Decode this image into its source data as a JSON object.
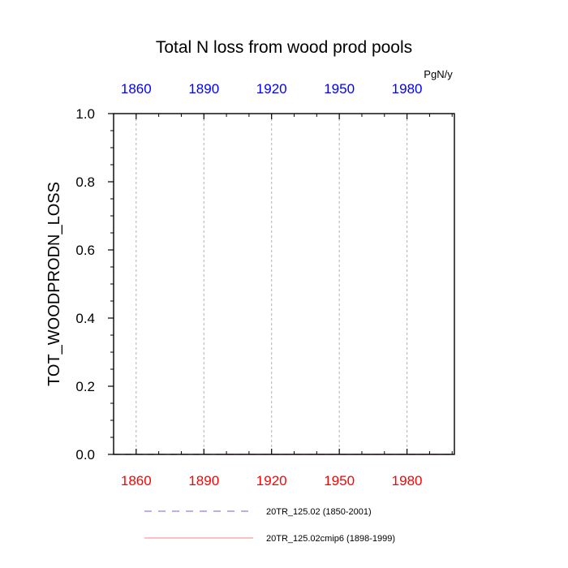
{
  "chart_data": {
    "type": "line",
    "title": "Total N loss from wood prod pools",
    "ylabel": "TOT_WOODPRODN_LOSS",
    "units": "PgN/y",
    "xlim": [
      1850,
      2001
    ],
    "ylim": [
      0.0,
      1.0
    ],
    "x_ticks": [
      1860,
      1890,
      1920,
      1950,
      1980
    ],
    "x_tick_labels": [
      "1860",
      "1890",
      "1920",
      "1950",
      "1980"
    ],
    "y_ticks": [
      0.0,
      0.2,
      0.4,
      0.6,
      0.8,
      1.0
    ],
    "y_tick_labels": [
      "0.0",
      "0.2",
      "0.4",
      "0.6",
      "0.8",
      "1.0"
    ],
    "grid": "vertical dashed at x ticks",
    "colors": {
      "bottom_axis_labels": "#ff0000",
      "top_axis_labels": "#0000ff"
    },
    "series": [
      {
        "name": "20TR_125.02 (1850-2001)",
        "color": "#6a6ad8",
        "dash": "dashed",
        "x": [
          1850,
          2001
        ],
        "y": [
          0.0,
          0.0
        ]
      },
      {
        "name": "20TR_125.02cmip6 (1898-1999)",
        "color": "#ff8080",
        "dash": "solid",
        "x": [
          1898,
          1999
        ],
        "y": [
          0.0,
          0.0
        ]
      }
    ]
  }
}
